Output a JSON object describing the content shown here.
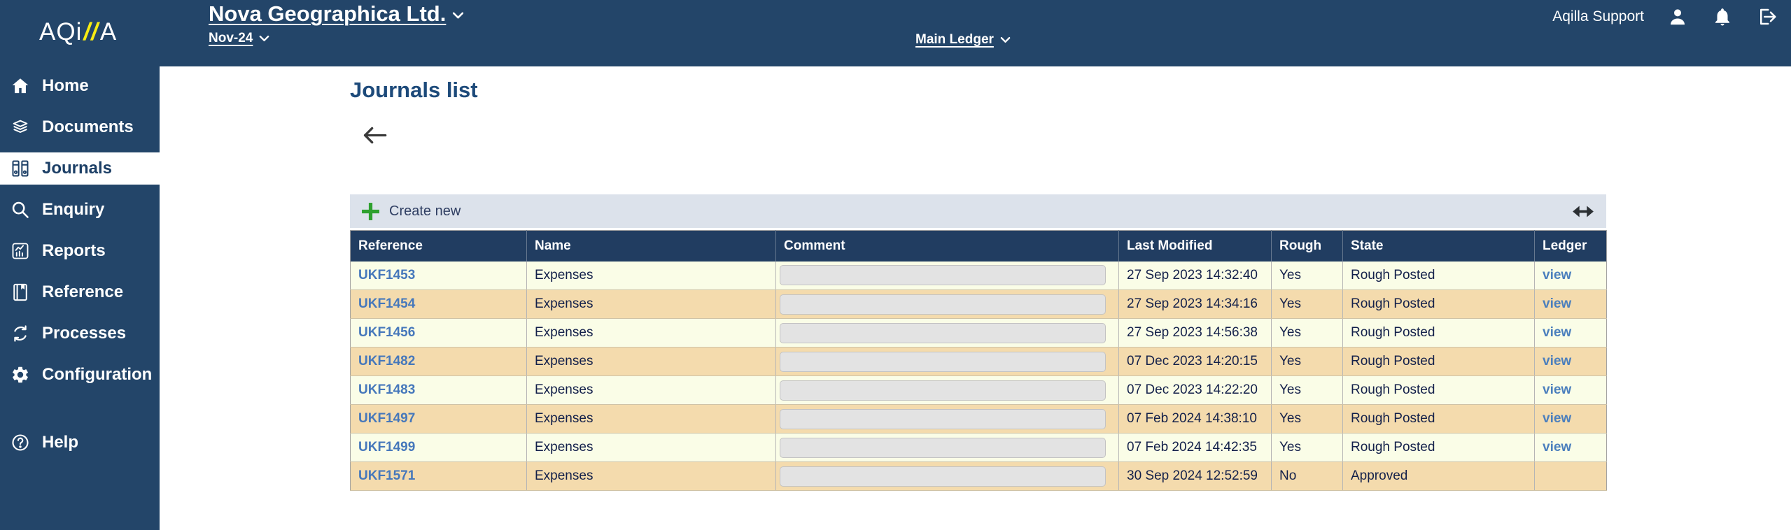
{
  "logo": {
    "prefix": "AQi",
    "slashes": "//",
    "suffix": "A"
  },
  "header": {
    "company": "Nova Geographica Ltd.",
    "period": "Nov-24",
    "ledger": "Main Ledger",
    "user": "Aqilla Support"
  },
  "sidebar": {
    "items": [
      {
        "id": "home",
        "label": "Home"
      },
      {
        "id": "documents",
        "label": "Documents"
      },
      {
        "id": "journals",
        "label": "Journals",
        "active": true
      },
      {
        "id": "enquiry",
        "label": "Enquiry"
      },
      {
        "id": "reports",
        "label": "Reports"
      },
      {
        "id": "reference",
        "label": "Reference"
      },
      {
        "id": "processes",
        "label": "Processes"
      },
      {
        "id": "configuration",
        "label": "Configuration"
      },
      {
        "id": "help",
        "label": "Help"
      }
    ]
  },
  "main": {
    "title": "Journals list",
    "toolbar": {
      "create_label": "Create new"
    },
    "table": {
      "columns": [
        "Reference",
        "Name",
        "Comment",
        "Last Modified",
        "Rough",
        "State",
        "Ledger"
      ],
      "rows": [
        {
          "reference": "UKF1453",
          "name": "Expenses",
          "comment": "",
          "last_modified": "27 Sep 2023 14:32:40",
          "rough": "Yes",
          "state": "Rough Posted",
          "ledger": "view"
        },
        {
          "reference": "UKF1454",
          "name": "Expenses",
          "comment": "",
          "last_modified": "27 Sep 2023 14:34:16",
          "rough": "Yes",
          "state": "Rough Posted",
          "ledger": "view"
        },
        {
          "reference": "UKF1456",
          "name": "Expenses",
          "comment": "",
          "last_modified": "27 Sep 2023 14:56:38",
          "rough": "Yes",
          "state": "Rough Posted",
          "ledger": "view"
        },
        {
          "reference": "UKF1482",
          "name": "Expenses",
          "comment": "",
          "last_modified": "07 Dec 2023 14:20:15",
          "rough": "Yes",
          "state": "Rough Posted",
          "ledger": "view"
        },
        {
          "reference": "UKF1483",
          "name": "Expenses",
          "comment": "",
          "last_modified": "07 Dec 2023 14:22:20",
          "rough": "Yes",
          "state": "Rough Posted",
          "ledger": "view"
        },
        {
          "reference": "UKF1497",
          "name": "Expenses",
          "comment": "",
          "last_modified": "07 Feb 2024 14:38:10",
          "rough": "Yes",
          "state": "Rough Posted",
          "ledger": "view"
        },
        {
          "reference": "UKF1499",
          "name": "Expenses",
          "comment": "",
          "last_modified": "07 Feb 2024 14:42:35",
          "rough": "Yes",
          "state": "Rough Posted",
          "ledger": "view"
        },
        {
          "reference": "UKF1571",
          "name": "Expenses",
          "comment": "",
          "last_modified": "30 Sep 2024 12:52:59",
          "rough": "No",
          "state": "Approved",
          "ledger": ""
        }
      ]
    }
  },
  "icons": {
    "user": "person-icon",
    "notifications": "bell-icon",
    "logout": "logout-icon",
    "create": "plus-icon",
    "resize": "horizontal-resize-icon",
    "back": "back-arrow-icon",
    "dropdown": "chevron-down-icon"
  },
  "colors": {
    "navy": "#234569",
    "table_header_navy": "#213d61",
    "row_cream": "#fafde7",
    "row_tan": "#f4dbad",
    "link_blue": "#4678bb",
    "accent_green": "#2fa12f",
    "toolbar_bg": "#dce2eb",
    "logo_slash_yellow": "#f7ec13",
    "heading_blue": "#1d4a7a"
  }
}
